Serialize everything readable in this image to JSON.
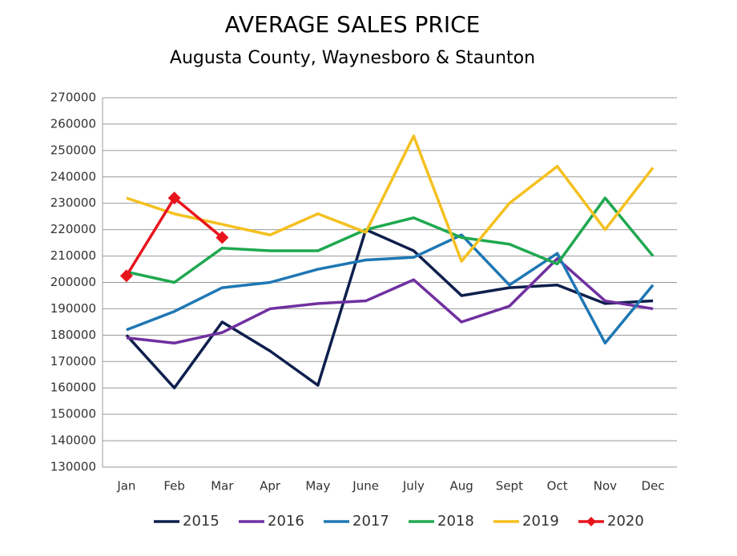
{
  "chart_data": {
    "type": "line",
    "title": "AVERAGE SALES PRICE",
    "subtitle": "Augusta County, Waynesboro & Staunton",
    "categories": [
      "Jan",
      "Feb",
      "Mar",
      "Apr",
      "May",
      "June",
      "July",
      "Aug",
      "Sept",
      "Oct",
      "Nov",
      "Dec"
    ],
    "series": [
      {
        "name": "2015",
        "color": "#0e1f4d",
        "values": [
          180000,
          160000,
          185000,
          174000,
          161000,
          220000,
          212000,
          195000,
          198000,
          199000,
          192000,
          193000
        ]
      },
      {
        "name": "2016",
        "color": "#7030a0",
        "values": [
          179000,
          177000,
          181000,
          190000,
          192000,
          193000,
          201000,
          185000,
          191000,
          209000,
          193000,
          190000
        ]
      },
      {
        "name": "2017",
        "color": "#1f77b4",
        "values": [
          182000,
          189000,
          198000,
          200000,
          205000,
          208500,
          209500,
          218000,
          199000,
          211000,
          177000,
          199000
        ]
      },
      {
        "name": "2018",
        "color": "#1fa84f",
        "values": [
          204000,
          200000,
          213000,
          212000,
          212000,
          220000,
          224500,
          217000,
          214500,
          207000,
          232000,
          210000
        ]
      },
      {
        "name": "2019",
        "color": "#f5c01f",
        "values": [
          232000,
          226000,
          222000,
          218000,
          226000,
          219000,
          255500,
          208000,
          230000,
          244000,
          220000,
          243500
        ]
      },
      {
        "name": "2020",
        "color": "#e8141c",
        "marker": "diamond",
        "values": [
          202500,
          232000,
          217000,
          null,
          null,
          null,
          null,
          null,
          null,
          null,
          null,
          null
        ]
      }
    ],
    "ylim": [
      130000,
      270000
    ],
    "yticks": [
      130000,
      140000,
      150000,
      160000,
      170000,
      180000,
      190000,
      200000,
      210000,
      220000,
      230000,
      240000,
      250000,
      260000,
      270000
    ],
    "grid": true,
    "legend": "bottom"
  }
}
